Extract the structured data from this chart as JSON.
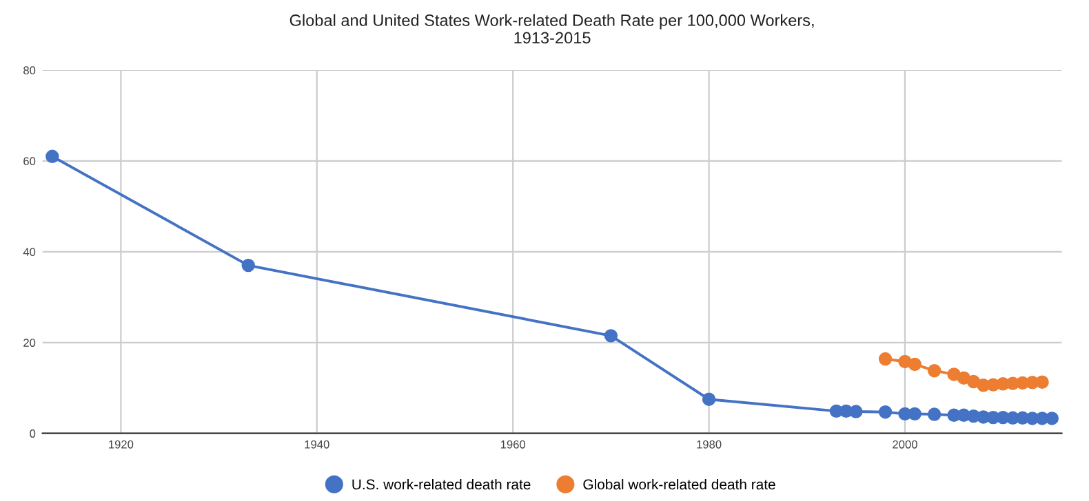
{
  "chart_data": {
    "type": "line",
    "title": "Global and United States Work-related Death Rate per 100,000 Workers,\n1913-2015",
    "series": [
      {
        "name": "U.S. work-related death rate",
        "color": "#4472c4",
        "x": [
          1913,
          1933,
          1970,
          1980,
          1993,
          1994,
          1995,
          1998,
          2000,
          2001,
          2003,
          2005,
          2006,
          2007,
          2008,
          2009,
          2010,
          2011,
          2012,
          2013,
          2014,
          2015
        ],
        "values": [
          61,
          37,
          21.5,
          7.5,
          4.9,
          4.9,
          4.8,
          4.7,
          4.3,
          4.3,
          4.2,
          4.0,
          4.0,
          3.8,
          3.6,
          3.5,
          3.5,
          3.4,
          3.4,
          3.3,
          3.3,
          3.3
        ]
      },
      {
        "name": "Global work-related death rate",
        "color": "#ed7d31",
        "x": [
          1998,
          2000,
          2001,
          2003,
          2005,
          2006,
          2007,
          2008,
          2009,
          2010,
          2011,
          2012,
          2013,
          2014
        ],
        "values": [
          16.4,
          15.8,
          15.2,
          13.8,
          13.0,
          12.2,
          11.4,
          10.6,
          10.7,
          10.9,
          11.0,
          11.1,
          11.2,
          11.3
        ]
      }
    ],
    "xlim": [
      1912,
      2016
    ],
    "xticks": [
      1920,
      1940,
      1960,
      1980,
      2000
    ],
    "ylim": [
      0,
      80
    ],
    "yticks": [
      0,
      20,
      40,
      60,
      80
    ],
    "grid": true,
    "legend": "bottom",
    "marker": "circle",
    "line_style": "solid"
  }
}
